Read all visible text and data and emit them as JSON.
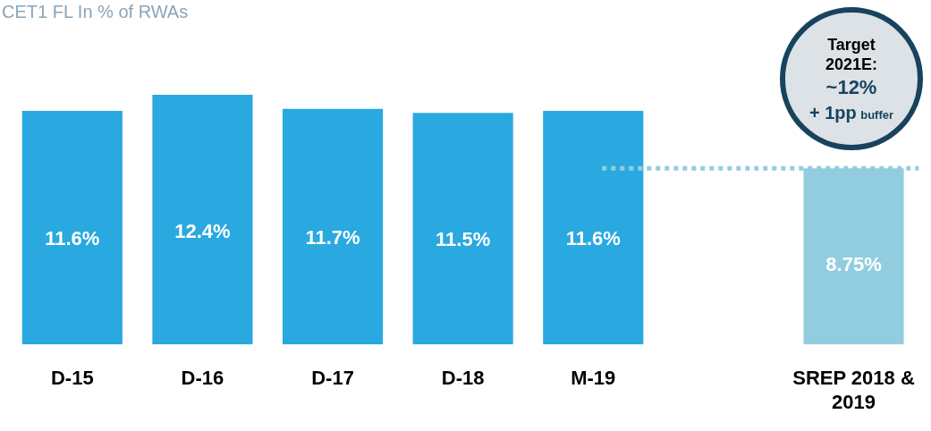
{
  "chart_data": {
    "type": "bar",
    "title": "CET1 FL In % of RWAs",
    "categories": [
      "D-15",
      "D-16",
      "D-17",
      "D-18",
      "M-19",
      null,
      "SREP 2018 & 2019"
    ],
    "values": [
      11.6,
      12.4,
      11.7,
      11.5,
      11.6,
      null,
      8.75
    ],
    "colors": [
      "#29a9df",
      "#29a9df",
      "#29a9df",
      "#29a9df",
      "#29a9df",
      "#29a9df",
      "#92cddf"
    ],
    "data_labels": true,
    "value_labels": [
      "11.6%",
      "12.4%",
      "11.7%",
      "11.5%",
      "11.6%",
      null,
      "8.75%"
    ],
    "relative": false,
    "grid": false,
    "legend": false,
    "ref_lines": [
      {
        "axis": "y",
        "value": 8.75,
        "color": "#92cddf",
        "line_style": "dotted"
      }
    ],
    "annotations": [
      "Target 2021E:",
      "~12%",
      "+ 1pp",
      "buffer"
    ]
  }
}
